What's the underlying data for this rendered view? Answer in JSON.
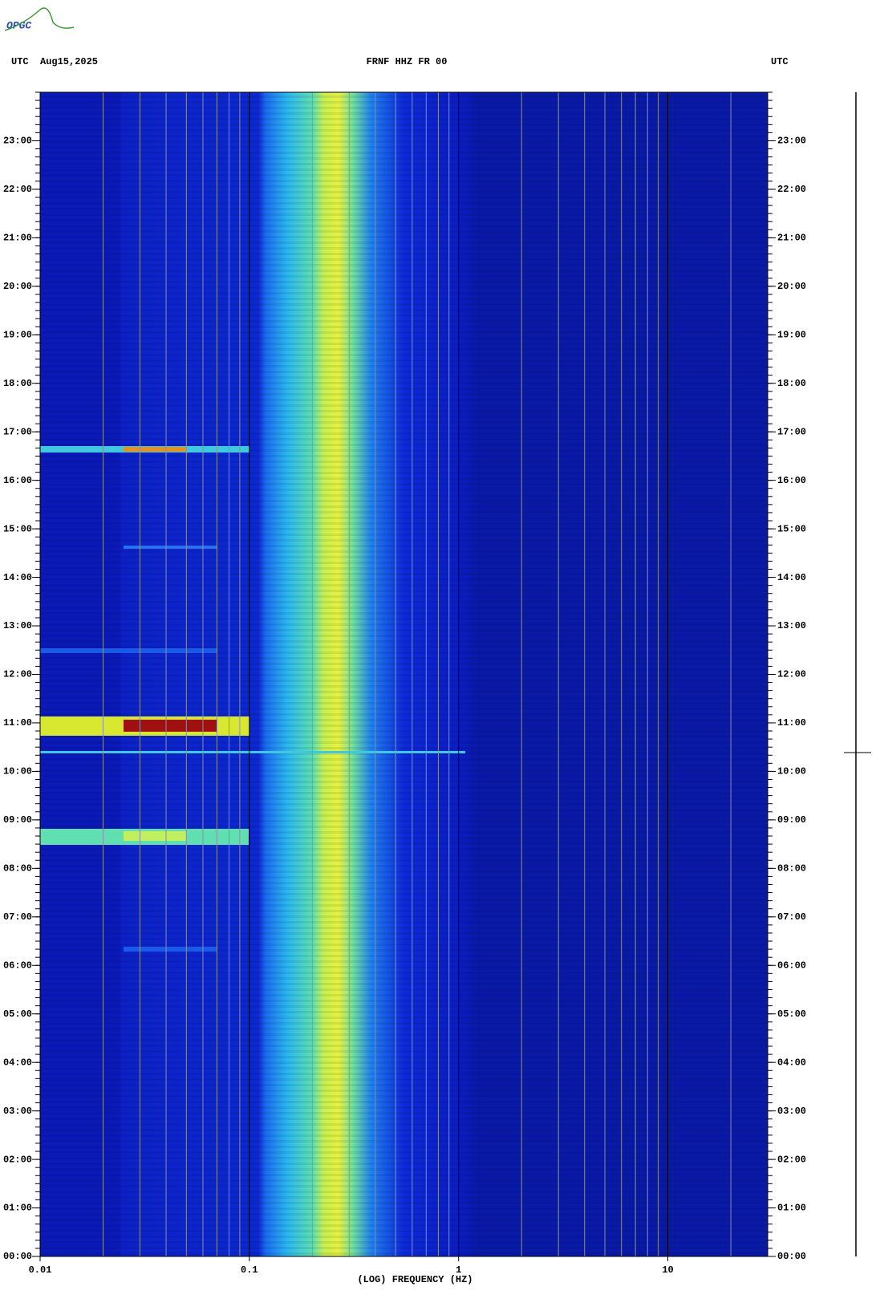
{
  "chart_data": {
    "type": "spectrogram",
    "logo": "OPGC",
    "title_left": "UTC",
    "date": "Aug15,2025",
    "title": "FRNF HHZ FR 00",
    "title_right": "UTC",
    "xlabel": "(LOG) FREQUENCY (HZ)",
    "xscale": "log",
    "xlim": [
      0.01,
      30
    ],
    "xticks": [
      0.01,
      0.1,
      1,
      10
    ],
    "xgrid": [
      0.02,
      0.03,
      0.04,
      0.05,
      0.06,
      0.07,
      0.08,
      0.09,
      0.2,
      0.3,
      0.4,
      0.5,
      0.6,
      0.7,
      0.8,
      0.9,
      2,
      3,
      4,
      5,
      6,
      7,
      8,
      9,
      20
    ],
    "ylim": [
      0,
      24
    ],
    "yticks": [
      {
        "value": 0,
        "label": "00:00"
      },
      {
        "value": 1,
        "label": "01:00"
      },
      {
        "value": 2,
        "label": "02:00"
      },
      {
        "value": 3,
        "label": "03:00"
      },
      {
        "value": 4,
        "label": "04:00"
      },
      {
        "value": 5,
        "label": "05:00"
      },
      {
        "value": 6,
        "label": "06:00"
      },
      {
        "value": 7,
        "label": "07:00"
      },
      {
        "value": 8,
        "label": "08:00"
      },
      {
        "value": 9,
        "label": "09:00"
      },
      {
        "value": 10,
        "label": "10:00"
      },
      {
        "value": 11,
        "label": "11:00"
      },
      {
        "value": 12,
        "label": "12:00"
      },
      {
        "value": 13,
        "label": "13:00"
      },
      {
        "value": 14,
        "label": "14:00"
      },
      {
        "value": 15,
        "label": "15:00"
      },
      {
        "value": 16,
        "label": "16:00"
      },
      {
        "value": 17,
        "label": "17:00"
      },
      {
        "value": 18,
        "label": "18:00"
      },
      {
        "value": 19,
        "label": "19:00"
      },
      {
        "value": 20,
        "label": "20:00"
      },
      {
        "value": 21,
        "label": "21:00"
      },
      {
        "value": 22,
        "label": "22:00"
      },
      {
        "value": 23,
        "label": "23:00"
      }
    ],
    "grid": true
  }
}
